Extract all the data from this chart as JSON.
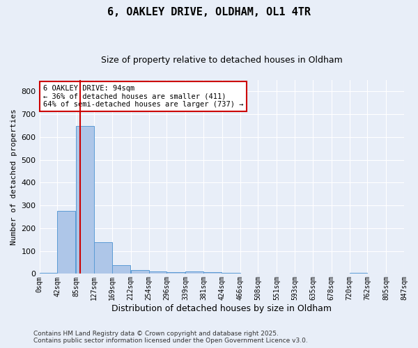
{
  "title": "6, OAKLEY DRIVE, OLDHAM, OL1 4TR",
  "subtitle": "Size of property relative to detached houses in Oldham",
  "xlabel": "Distribution of detached houses by size in Oldham",
  "ylabel": "Number of detached properties",
  "bar_color": "#aec6e8",
  "bar_edge_color": "#5b9bd5",
  "background_color": "#e8eef8",
  "grid_color": "#ffffff",
  "bin_edges": [
    0,
    42,
    85,
    127,
    169,
    212,
    254,
    296,
    339,
    381,
    424,
    466,
    508,
    551,
    593,
    635,
    678,
    720,
    762,
    805,
    847
  ],
  "bin_labels": [
    "0sqm",
    "42sqm",
    "85sqm",
    "127sqm",
    "169sqm",
    "212sqm",
    "254sqm",
    "296sqm",
    "339sqm",
    "381sqm",
    "424sqm",
    "466sqm",
    "508sqm",
    "551sqm",
    "593sqm",
    "635sqm",
    "678sqm",
    "720sqm",
    "762sqm",
    "805sqm",
    "847sqm"
  ],
  "counts": [
    5,
    275,
    650,
    140,
    38,
    18,
    10,
    8,
    10,
    8,
    4,
    0,
    0,
    0,
    0,
    0,
    0,
    3,
    0,
    0
  ],
  "property_size": 94,
  "vline_color": "#cc0000",
  "ylim": [
    0,
    850
  ],
  "yticks": [
    0,
    100,
    200,
    300,
    400,
    500,
    600,
    700,
    800
  ],
  "annotation_title": "6 OAKLEY DRIVE: 94sqm",
  "annotation_line1": "← 36% of detached houses are smaller (411)",
  "annotation_line2": "64% of semi-detached houses are larger (737) →",
  "annotation_box_color": "#cc0000",
  "footer1": "Contains HM Land Registry data © Crown copyright and database right 2025.",
  "footer2": "Contains public sector information licensed under the Open Government Licence v3.0."
}
